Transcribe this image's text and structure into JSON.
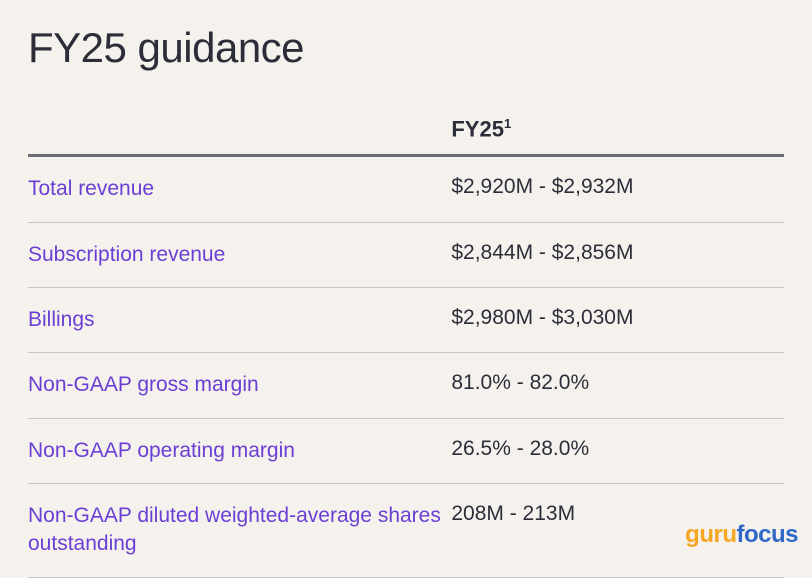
{
  "title": "FY25 guidance",
  "table": {
    "header": {
      "col1": "",
      "col2_main": "FY25",
      "col2_sup": "1"
    },
    "rows": [
      {
        "label": "Total revenue",
        "value": "$2,920M - $2,932M"
      },
      {
        "label": "Subscription revenue",
        "value": "$2,844M - $2,856M"
      },
      {
        "label": "Billings",
        "value": "$2,980M - $3,030M"
      },
      {
        "label": "Non-GAAP gross margin",
        "value": "81.0% - 82.0%"
      },
      {
        "label": "Non-GAAP operating margin",
        "value": "26.5% - 28.0%"
      },
      {
        "label": "Non-GAAP diluted weighted-average shares outstanding",
        "value": "208M - 213M"
      }
    ]
  },
  "watermark": {
    "part1": "guru",
    "part2": "focus"
  },
  "styling": {
    "background_color": "#f5f2ed",
    "title_color": "#2d2d3a",
    "title_fontsize": 42,
    "header_fontsize": 22,
    "header_border_color": "#6b6b75",
    "row_border_color": "#c9c6c0",
    "label_color": "#6b3fd4",
    "value_color": "#2d2d3a",
    "cell_fontsize": 21,
    "watermark_guru_color": "#f5a623",
    "watermark_focus_color": "#3068c8"
  }
}
